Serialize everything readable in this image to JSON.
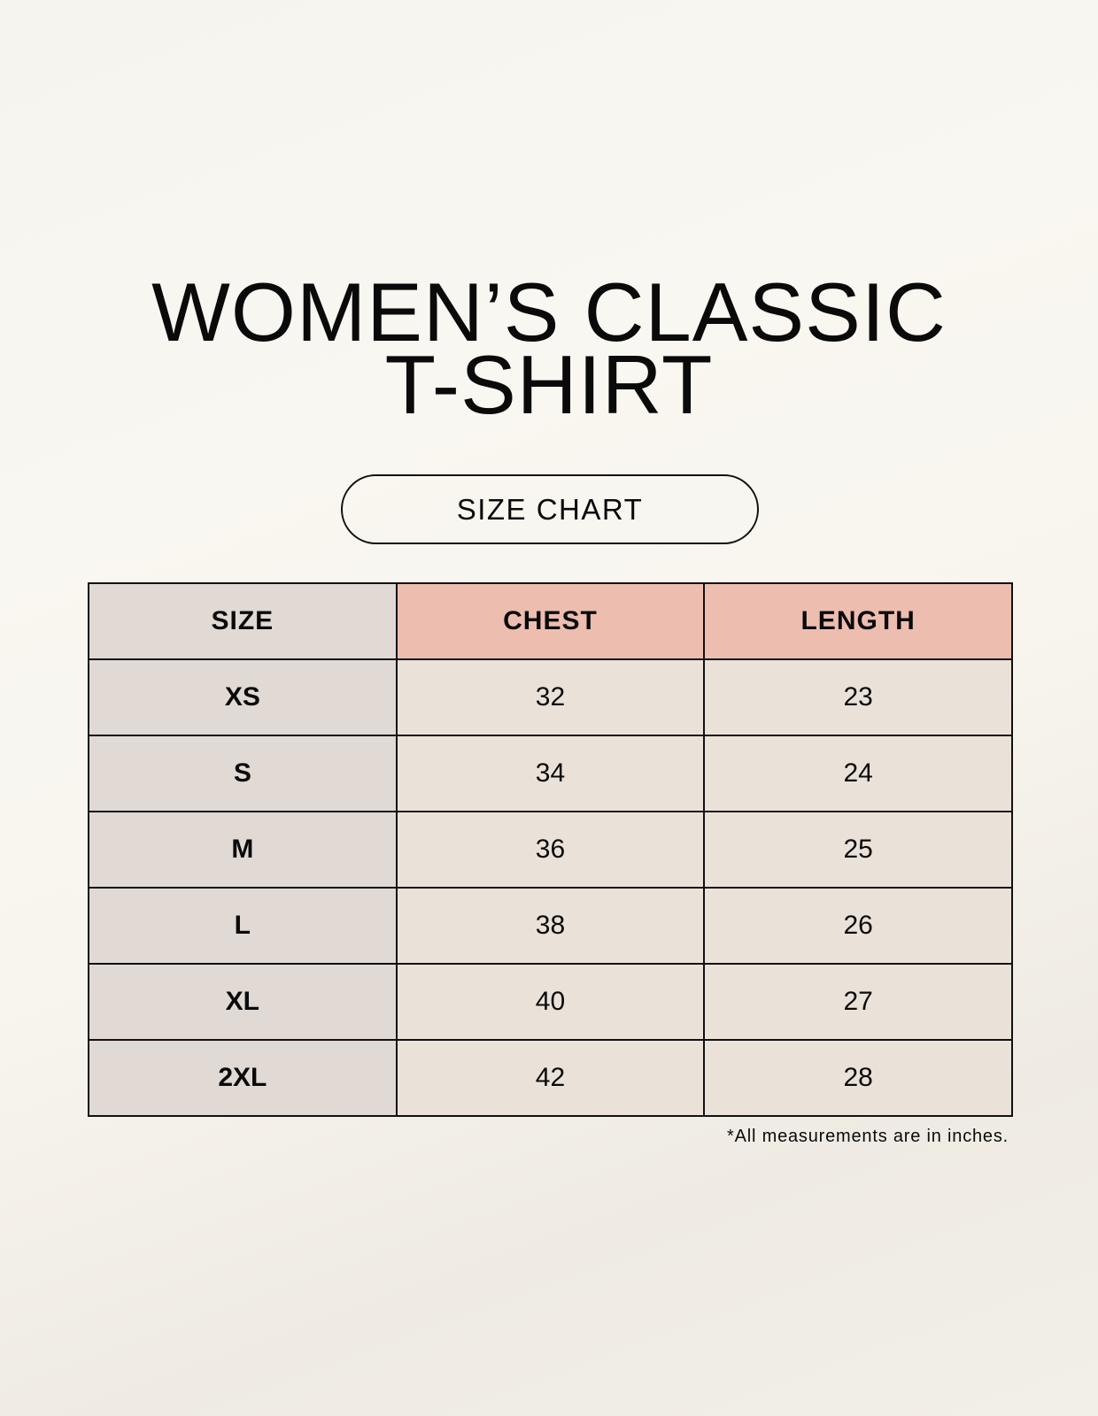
{
  "title_line1": "WOMEN’S CLASSIC",
  "title_line2": "T-SHIRT",
  "subtitle": "SIZE CHART",
  "table": {
    "headers": [
      "SIZE",
      "CHEST",
      "LENGTH"
    ],
    "rows": [
      [
        "XS",
        "32",
        "23"
      ],
      [
        "S",
        "34",
        "24"
      ],
      [
        "M",
        "36",
        "25"
      ],
      [
        "L",
        "38",
        "26"
      ],
      [
        "XL",
        "40",
        "27"
      ],
      [
        "2XL",
        "42",
        "28"
      ]
    ]
  },
  "footnote": "*All measurements are in inches.",
  "colors": {
    "size_column": "#e0d9d4",
    "header_accent": "#edbdaf",
    "cells": "#eae2d8"
  }
}
